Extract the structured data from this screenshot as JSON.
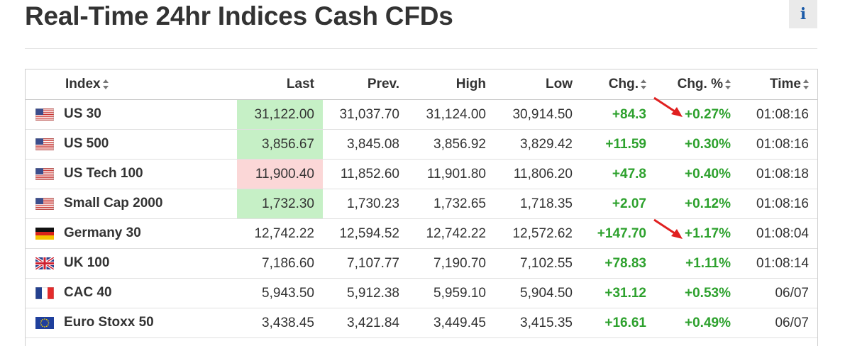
{
  "page": {
    "title": "Real-Time 24hr Indices Cash CFDs",
    "info_label": "i"
  },
  "columns": {
    "index": "Index",
    "last": "Last",
    "prev": "Prev.",
    "high": "High",
    "low": "Low",
    "chg": "Chg.",
    "chg_pct": "Chg. %",
    "time": "Time"
  },
  "colors": {
    "positive": "#2da12d",
    "last_up_bg": "#c6f0c6",
    "last_down_bg": "#fbd7d7",
    "annotation_arrow": "#e02020",
    "info_icon": "#1a5aa8"
  },
  "rows": [
    {
      "flag": "us-flag-icon",
      "name": "US 30",
      "last": "31,122.00",
      "prev": "31,037.70",
      "high": "31,124.00",
      "low": "30,914.50",
      "chg": "+84.3",
      "chg_pct": "+0.27%",
      "time": "01:08:16",
      "last_highlight": "up"
    },
    {
      "flag": "us-flag-icon",
      "name": "US 500",
      "last": "3,856.67",
      "prev": "3,845.08",
      "high": "3,856.92",
      "low": "3,829.42",
      "chg": "+11.59",
      "chg_pct": "+0.30%",
      "time": "01:08:16",
      "last_highlight": "up"
    },
    {
      "flag": "us-flag-icon",
      "name": "US Tech 100",
      "last": "11,900.40",
      "prev": "11,852.60",
      "high": "11,901.80",
      "low": "11,806.20",
      "chg": "+47.8",
      "chg_pct": "+0.40%",
      "time": "01:08:18",
      "last_highlight": "down"
    },
    {
      "flag": "us-flag-icon",
      "name": "Small Cap 2000",
      "last": "1,732.30",
      "prev": "1,730.23",
      "high": "1,732.65",
      "low": "1,718.35",
      "chg": "+2.07",
      "chg_pct": "+0.12%",
      "time": "01:08:16",
      "last_highlight": "up"
    },
    {
      "flag": "germany-flag-icon",
      "name": "Germany 30",
      "last": "12,742.22",
      "prev": "12,594.52",
      "high": "12,742.22",
      "low": "12,572.62",
      "chg": "+147.70",
      "chg_pct": "+1.17%",
      "time": "01:08:04",
      "last_highlight": "none"
    },
    {
      "flag": "uk-flag-icon",
      "name": "UK 100",
      "last": "7,186.60",
      "prev": "7,107.77",
      "high": "7,190.70",
      "low": "7,102.55",
      "chg": "+78.83",
      "chg_pct": "+1.11%",
      "time": "01:08:14",
      "last_highlight": "none"
    },
    {
      "flag": "france-flag-icon",
      "name": "CAC 40",
      "last": "5,943.50",
      "prev": "5,912.38",
      "high": "5,959.10",
      "low": "5,904.50",
      "chg": "+31.12",
      "chg_pct": "+0.53%",
      "time": "06/07",
      "last_highlight": "none"
    },
    {
      "flag": "eu-flag-icon",
      "name": "Euro Stoxx 50",
      "last": "3,438.45",
      "prev": "3,421.84",
      "high": "3,449.45",
      "low": "3,415.35",
      "chg": "+16.61",
      "chg_pct": "+0.49%",
      "time": "06/07",
      "last_highlight": "none"
    }
  ]
}
